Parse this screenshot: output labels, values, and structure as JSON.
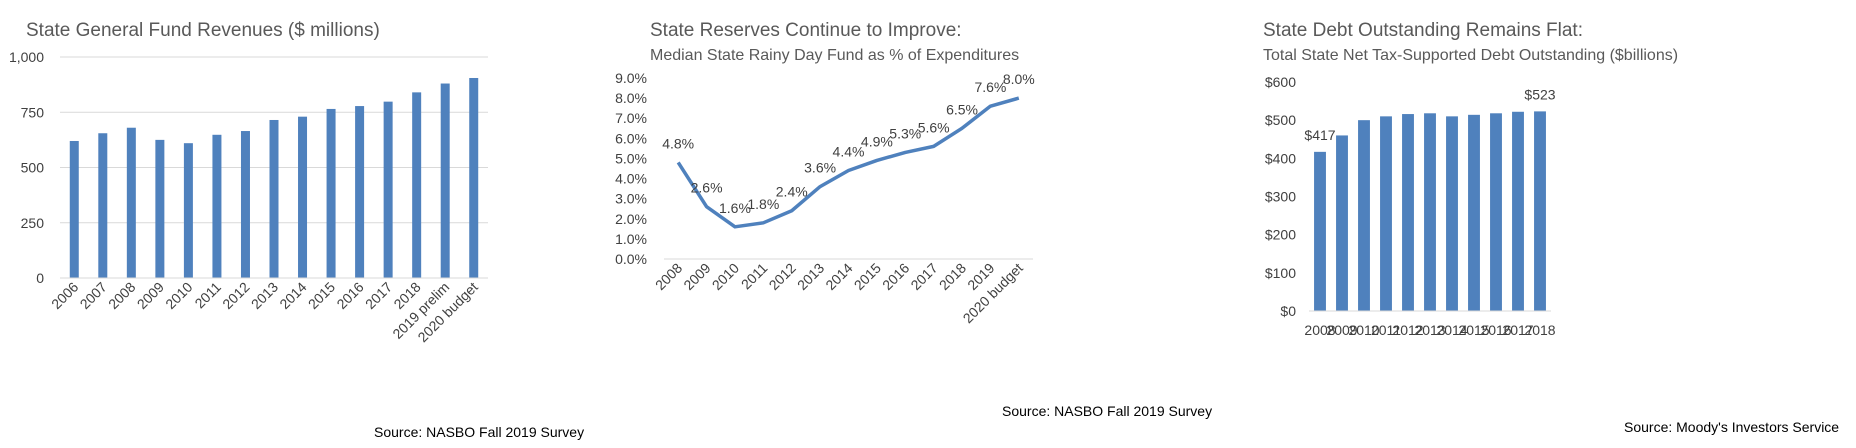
{
  "chart_data": [
    {
      "type": "bar",
      "title": "State General Fund Revenues ($ millions)",
      "subtitle": "",
      "categories": [
        "2006",
        "2007",
        "2008",
        "2009",
        "2010",
        "2011",
        "2012",
        "2013",
        "2014",
        "2015",
        "2016",
        "2017",
        "2018",
        "2019 prelim",
        "2020 budget"
      ],
      "values": [
        620,
        655,
        680,
        625,
        610,
        648,
        665,
        715,
        730,
        765,
        778,
        798,
        840,
        880,
        905
      ],
      "ylim": [
        0,
        1000
      ],
      "yticks": [
        0,
        250,
        500,
        750,
        1000
      ],
      "ytick_labels": [
        "0",
        "250",
        "500",
        "750",
        "1,000"
      ],
      "gridlines": "horizontal",
      "legend": "none",
      "color": "#4f81bd",
      "source": "Source: NASBO Fall 2019 Survey"
    },
    {
      "type": "line",
      "title": "State Reserves Continue to Improve:",
      "subtitle": "Median State Rainy Day Fund as % of Expenditures",
      "categories": [
        "2008",
        "2009",
        "2010",
        "2011",
        "2012",
        "2013",
        "2014",
        "2015",
        "2016",
        "2017",
        "2018",
        "2019",
        "2020 budget"
      ],
      "values": [
        4.8,
        2.6,
        1.6,
        1.8,
        2.4,
        3.6,
        4.4,
        4.9,
        5.3,
        5.6,
        6.5,
        7.6,
        8.0
      ],
      "data_labels": [
        "4.8%",
        "2.6%",
        "1.6%",
        "1.8%",
        "2.4%",
        "3.6%",
        "4.4%",
        "4.9%",
        "5.3%",
        "5.6%",
        "6.5%",
        "7.6%",
        "8.0%"
      ],
      "ylim": [
        0,
        9
      ],
      "yticks": [
        0,
        1,
        2,
        3,
        4,
        5,
        6,
        7,
        8,
        9
      ],
      "ytick_labels": [
        "0.0%",
        "1.0%",
        "2.0%",
        "3.0%",
        "4.0%",
        "5.0%",
        "6.0%",
        "7.0%",
        "8.0%",
        "9.0%"
      ],
      "gridlines": "none",
      "legend": "none",
      "color": "#4f81bd",
      "source": "Source: NASBO Fall 2019 Survey"
    },
    {
      "type": "bar",
      "title": "State Debt Outstanding Remains Flat:",
      "subtitle": "Total State Net Tax-Supported Debt Outstanding ($billions)",
      "categories": [
        "2008",
        "2009",
        "2010",
        "2011",
        "2012",
        "2013",
        "2014",
        "2015",
        "2016",
        "2017",
        "2018"
      ],
      "values": [
        417,
        460,
        500,
        510,
        516,
        518,
        510,
        514,
        518,
        522,
        523
      ],
      "data_labels": [
        "$417",
        "",
        "",
        "",
        "",
        "",
        "",
        "",
        "",
        "",
        "$523"
      ],
      "ylim": [
        0,
        600
      ],
      "yticks": [
        0,
        100,
        200,
        300,
        400,
        500,
        600
      ],
      "ytick_labels": [
        "$0",
        "$100",
        "$200",
        "$300",
        "$400",
        "$500",
        "$600"
      ],
      "gridlines": "none",
      "legend": "none",
      "color": "#4f81bd",
      "source": "Source: Moody's Investors Service"
    }
  ]
}
